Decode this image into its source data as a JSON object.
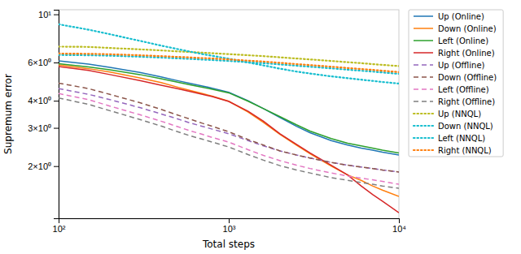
{
  "chart_data": {
    "type": "line",
    "xlabel": "Total steps",
    "ylabel": "Supremum error",
    "log": true,
    "legend": "right",
    "xlim": [
      100,
      10000
    ],
    "ylim": [
      1.15,
      10.5
    ],
    "xticks": [
      {
        "value": 100,
        "label": "10²"
      },
      {
        "value": 1000,
        "label": "10³"
      },
      {
        "value": 10000,
        "label": "10⁴"
      }
    ],
    "yticks": [
      {
        "value": 2,
        "label": "2×10⁰"
      },
      {
        "value": 3,
        "label": "3×10⁰"
      },
      {
        "value": 4,
        "label": "4×10⁰"
      },
      {
        "value": 6,
        "label": "6×10⁰"
      },
      {
        "value": 10,
        "label": "10¹"
      }
    ],
    "x": [
      100,
      150,
      200,
      300,
      400,
      500,
      600,
      700,
      800,
      1000,
      1300,
      1600,
      2000,
      2500,
      3000,
      4000,
      5000,
      6000,
      7000,
      8000,
      10000
    ],
    "series": [
      {
        "name": "Up (Online)",
        "color": "#1f77b4",
        "line_style": "solid",
        "values": [
          6.1,
          5.9,
          5.7,
          5.4,
          5.15,
          4.95,
          4.8,
          4.68,
          4.57,
          4.38,
          4.0,
          3.68,
          3.35,
          3.05,
          2.85,
          2.62,
          2.5,
          2.42,
          2.37,
          2.32,
          2.25
        ]
      },
      {
        "name": "Down (Online)",
        "color": "#ff7f0e",
        "line_style": "solid",
        "values": [
          5.85,
          5.62,
          5.42,
          5.1,
          4.85,
          4.62,
          4.45,
          4.32,
          4.2,
          3.98,
          3.55,
          3.18,
          2.8,
          2.5,
          2.28,
          2.0,
          1.82,
          1.72,
          1.62,
          1.55,
          1.45
        ]
      },
      {
        "name": "Left (Online)",
        "color": "#2ca02c",
        "line_style": "solid",
        "values": [
          5.92,
          5.72,
          5.55,
          5.28,
          5.05,
          4.87,
          4.73,
          4.62,
          4.52,
          4.35,
          3.98,
          3.68,
          3.38,
          3.1,
          2.9,
          2.68,
          2.55,
          2.48,
          2.42,
          2.37,
          2.3
        ]
      },
      {
        "name": "Right (Online)",
        "color": "#d62728",
        "line_style": "solid",
        "values": [
          5.75,
          5.52,
          5.28,
          4.96,
          4.72,
          4.55,
          4.4,
          4.28,
          4.18,
          3.97,
          3.58,
          3.22,
          2.82,
          2.52,
          2.3,
          2.02,
          1.82,
          1.62,
          1.48,
          1.38,
          1.22
        ]
      },
      {
        "name": "Up (Offline)",
        "color": "#9467bd",
        "line_style": "dashed",
        "values": [
          4.55,
          4.28,
          4.05,
          3.72,
          3.48,
          3.3,
          3.15,
          3.05,
          2.96,
          2.82,
          2.62,
          2.48,
          2.35,
          2.25,
          2.18,
          2.08,
          2.02,
          1.98,
          1.95,
          1.92,
          1.88
        ]
      },
      {
        "name": "Down (Offline)",
        "color": "#8c564b",
        "line_style": "dashed",
        "values": [
          4.82,
          4.55,
          4.28,
          3.92,
          3.65,
          3.44,
          3.28,
          3.15,
          3.05,
          2.88,
          2.65,
          2.5,
          2.35,
          2.25,
          2.18,
          2.08,
          2.02,
          1.98,
          1.95,
          1.92,
          1.88
        ]
      },
      {
        "name": "Left (Offline)",
        "color": "#e377c2",
        "line_style": "dashed",
        "values": [
          4.32,
          4.05,
          3.78,
          3.45,
          3.22,
          3.04,
          2.9,
          2.8,
          2.71,
          2.58,
          2.38,
          2.24,
          2.12,
          2.02,
          1.95,
          1.86,
          1.8,
          1.76,
          1.73,
          1.7,
          1.65
        ]
      },
      {
        "name": "Right (Offline)",
        "color": "#7f7f7f",
        "line_style": "dashed",
        "values": [
          4.12,
          3.85,
          3.6,
          3.28,
          3.06,
          2.88,
          2.75,
          2.66,
          2.58,
          2.45,
          2.26,
          2.13,
          2.01,
          1.92,
          1.86,
          1.77,
          1.72,
          1.68,
          1.65,
          1.62,
          1.58
        ]
      },
      {
        "name": "Up (NNQL)",
        "color": "#bcbd22",
        "line_style": "dotted",
        "values": [
          7.1,
          7.08,
          7.0,
          6.9,
          6.82,
          6.75,
          6.7,
          6.66,
          6.62,
          6.56,
          6.48,
          6.42,
          6.34,
          6.26,
          6.2,
          6.1,
          6.02,
          5.96,
          5.9,
          5.85,
          5.78
        ]
      },
      {
        "name": "Down (NNQL)",
        "color": "#17becf",
        "line_style": "dotted",
        "values": [
          6.5,
          6.48,
          6.45,
          6.38,
          6.32,
          6.27,
          6.23,
          6.19,
          6.16,
          6.1,
          6.02,
          5.96,
          5.88,
          5.8,
          5.74,
          5.64,
          5.56,
          5.5,
          5.45,
          5.4,
          5.32
        ]
      },
      {
        "name": "Left (NNQL)",
        "color": "#17becf",
        "line_style": "dotted",
        "values": [
          9.0,
          8.5,
          8.1,
          7.55,
          7.18,
          6.92,
          6.72,
          6.56,
          6.44,
          6.25,
          6.0,
          5.82,
          5.62,
          5.45,
          5.34,
          5.18,
          5.08,
          5.0,
          4.94,
          4.88,
          4.8
        ]
      },
      {
        "name": "Right (NNQL)",
        "color": "#ff7f0e",
        "line_style": "dotted",
        "values": [
          6.6,
          6.58,
          6.55,
          6.48,
          6.42,
          6.37,
          6.33,
          6.29,
          6.26,
          6.2,
          6.12,
          6.06,
          5.98,
          5.9,
          5.84,
          5.74,
          5.66,
          5.6,
          5.55,
          5.5,
          5.42
        ]
      }
    ]
  }
}
